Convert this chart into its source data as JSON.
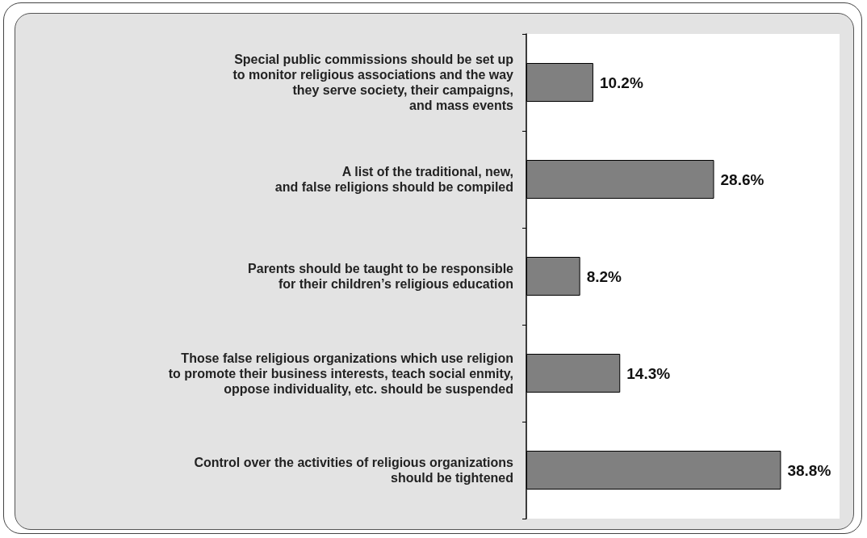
{
  "chart_data": {
    "type": "bar",
    "orientation": "horizontal",
    "categories": [
      "Special public commissions should be set up\nto monitor religious associations and the way\nthey serve society, their campaigns,\nand mass events",
      "A list of the traditional, new,\nand false religions should be compiled",
      "Parents should be taught to be responsible\nfor their children’s religious education",
      "Those false religious organizations which use religion\nto promote their business interests, teach social enmity,\noppose individuality, etc. should be suspended",
      "Control over the activities of religious organizations\nshould be tightened"
    ],
    "values": [
      10.2,
      28.6,
      8.2,
      14.3,
      38.8
    ],
    "value_labels": [
      "10.2%",
      "28.6%",
      "8.2%",
      "14.3%",
      "38.8%"
    ],
    "color": "#808080"
  }
}
